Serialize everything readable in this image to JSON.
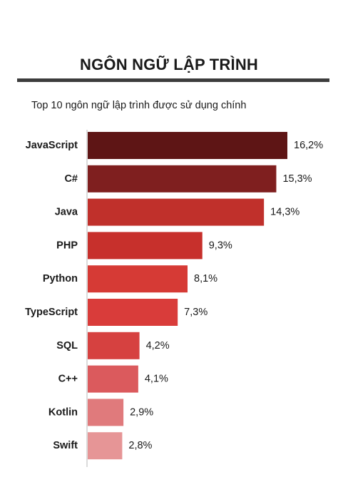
{
  "header": {
    "title": "NGÔN NGỮ LẬP TRÌNH",
    "subtitle": "Top 10 ngôn ngữ lập trình được sử dụng chính"
  },
  "chart_data": {
    "type": "bar",
    "orientation": "horizontal",
    "title": "NGÔN NGỮ LẬP TRÌNH",
    "subtitle": "Top 10 ngôn ngữ lập trình được sử dụng chính",
    "xlabel": "",
    "ylabel": "",
    "unit": "%",
    "categories": [
      "JavaScript",
      "C#",
      "Java",
      "PHP",
      "Python",
      "TypeScript",
      "SQL",
      "C++",
      "Kotlin",
      "Swift"
    ],
    "values": [
      16.2,
      15.3,
      14.3,
      9.3,
      8.1,
      7.3,
      4.2,
      4.1,
      2.9,
      2.8
    ],
    "value_labels": [
      "16,2%",
      "15,3%",
      "14,3%",
      "9,3%",
      "8,1%",
      "7,3%",
      "4,2%",
      "4,1%",
      "2,9%",
      "2,8%"
    ],
    "colors": [
      "#5e1515",
      "#7f1f1f",
      "#c0302b",
      "#c7302c",
      "#d63a35",
      "#d93c3a",
      "#d64140",
      "#db5a5d",
      "#e07a7c",
      "#e69596"
    ],
    "xlim": [
      0,
      16.2
    ],
    "grid": false,
    "legend": "none"
  }
}
